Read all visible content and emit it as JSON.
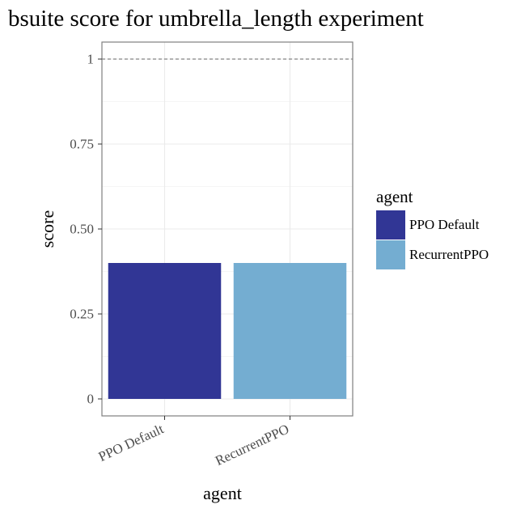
{
  "chart_data": {
    "type": "bar",
    "title": "bsuite score for umbrella_length experiment",
    "xlabel": "agent",
    "ylabel": "score",
    "categories": [
      "PPO Default",
      "RecurrentPPO"
    ],
    "values": [
      0.4,
      0.4
    ],
    "colors": [
      "#313695",
      "#74add1"
    ],
    "ylim": [
      -0.05,
      1.05
    ],
    "yticks": [
      0,
      0.25,
      0.5,
      0.75,
      1
    ],
    "ytick_labels": [
      "0",
      "0.25",
      "0.50",
      "0.75",
      "1"
    ],
    "reference_line": {
      "y": 1,
      "style": "dashed",
      "color": "#666666"
    },
    "grid": true,
    "legend": {
      "title": "agent",
      "position": "right",
      "entries": [
        "PPO Default",
        "RecurrentPPO"
      ]
    }
  }
}
